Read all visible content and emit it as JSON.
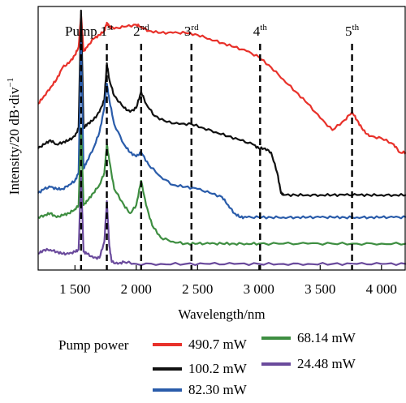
{
  "chart_data": {
    "type": "line",
    "xlabel": "Wavelength/nm",
    "ylabel": "Intensity/20 dB·div",
    "ylabel_superscript": "−1",
    "xlim": [
      1200,
      4200
    ],
    "x_ticks": [
      {
        "value": 1500,
        "label": "1 500"
      },
      {
        "value": 2000,
        "label": "2 000"
      },
      {
        "value": 2500,
        "label": "2 500"
      },
      {
        "value": 3000,
        "label": "3 000"
      },
      {
        "value": 3500,
        "label": "3 500"
      },
      {
        "value": 4000,
        "label": "4 000"
      }
    ],
    "grid": false,
    "markers": [
      {
        "label": "Pump",
        "sup": "",
        "x": 1550
      },
      {
        "label": "1",
        "sup": "st",
        "x": 1760
      },
      {
        "label": "2",
        "sup": "nd",
        "x": 2040
      },
      {
        "label": "3",
        "sup": "rd",
        "x": 2450
      },
      {
        "label": "4",
        "sup": "th",
        "x": 3010
      },
      {
        "label": "5",
        "sup": "th",
        "x": 3760
      }
    ],
    "legend": {
      "title": "Pump power",
      "placement": "bottom"
    },
    "series": [
      {
        "name": "490.7 mW",
        "color": "#e8312a",
        "x": [
          1200,
          1250,
          1300,
          1350,
          1400,
          1450,
          1500,
          1530,
          1550,
          1570,
          1600,
          1650,
          1700,
          1740,
          1760,
          1780,
          1820,
          1900,
          2000,
          2040,
          2100,
          2200,
          2300,
          2400,
          2500,
          2600,
          2700,
          2800,
          2900,
          3000,
          3100,
          3200,
          3300,
          3400,
          3500,
          3600,
          3700,
          3760,
          3800,
          3850,
          3900,
          4000,
          4100,
          4150,
          4200
        ],
        "y": [
          -48,
          -44,
          -40,
          -36,
          -30,
          -28,
          -24,
          -20,
          -4,
          -22,
          -20,
          -16,
          -14,
          -12,
          -8,
          -10,
          -11,
          -10,
          -9,
          -10,
          -12,
          -13,
          -13,
          -13,
          -14,
          -16,
          -18,
          -20,
          -22,
          -25,
          -30,
          -36,
          -42,
          -48,
          -55,
          -61,
          -56,
          -52,
          -56,
          -61,
          -64,
          -65,
          -68,
          -72,
          -72
        ]
      },
      {
        "name": "100.2 mW",
        "color": "#111111",
        "x": [
          1200,
          1250,
          1300,
          1350,
          1400,
          1450,
          1500,
          1530,
          1550,
          1570,
          1600,
          1650,
          1700,
          1740,
          1760,
          1780,
          1820,
          1900,
          1950,
          2000,
          2040,
          2080,
          2150,
          2250,
          2350,
          2450,
          2550,
          2650,
          2750,
          2850,
          2950,
          3000,
          3050,
          3100,
          3150,
          3180,
          3200,
          3300,
          3400,
          3500,
          3600,
          3700,
          3800,
          3900,
          4000,
          4100,
          4200
        ],
        "y": [
          -70,
          -68,
          -66,
          -68,
          -67,
          -66,
          -64,
          -60,
          -2,
          -60,
          -58,
          -56,
          -52,
          -46,
          -28,
          -36,
          -44,
          -50,
          -52,
          -50,
          -42,
          -48,
          -54,
          -57,
          -58,
          -58,
          -60,
          -62,
          -64,
          -66,
          -68,
          -70,
          -70,
          -72,
          -82,
          -92,
          -93,
          -93,
          -93,
          -93,
          -93,
          -93,
          -93,
          -93,
          -93,
          -93,
          -93
        ]
      },
      {
        "name": "82.30 mW",
        "color": "#2a5caa",
        "x": [
          1200,
          1250,
          1300,
          1350,
          1400,
          1450,
          1500,
          1530,
          1550,
          1570,
          1600,
          1650,
          1700,
          1740,
          1760,
          1780,
          1820,
          1900,
          1950,
          2000,
          2040,
          2100,
          2200,
          2300,
          2400,
          2500,
          2600,
          2700,
          2750,
          2800,
          2850,
          2900,
          3000,
          3100,
          3200,
          3300,
          3400,
          3500,
          3600,
          3700,
          3800,
          3900,
          4000,
          4100,
          4200
        ],
        "y": [
          -92,
          -90,
          -89,
          -90,
          -90,
          -88,
          -86,
          -82,
          -18,
          -80,
          -76,
          -70,
          -62,
          -50,
          -38,
          -46,
          -58,
          -68,
          -72,
          -74,
          -72,
          -78,
          -84,
          -88,
          -89,
          -90,
          -92,
          -94,
          -98,
          -102,
          -104,
          -104,
          -104,
          -104,
          -104,
          -104,
          -104,
          -104,
          -104,
          -104,
          -104,
          -104,
          -104,
          -104,
          -104
        ]
      },
      {
        "name": "68.14 mW",
        "color": "#3e8e41",
        "x": [
          1200,
          1250,
          1300,
          1350,
          1400,
          1450,
          1500,
          1530,
          1550,
          1570,
          1600,
          1650,
          1700,
          1740,
          1760,
          1780,
          1820,
          1900,
          1950,
          2000,
          2040,
          2080,
          2130,
          2200,
          2300,
          2400,
          2500,
          2600,
          2700,
          2800,
          2900,
          3000,
          3200,
          3400,
          3600,
          3800,
          4000,
          4200
        ],
        "y": [
          -104,
          -103,
          -102,
          -104,
          -103,
          -102,
          -100,
          -98,
          -60,
          -98,
          -96,
          -92,
          -88,
          -82,
          -68,
          -76,
          -90,
          -98,
          -102,
          -98,
          -86,
          -98,
          -108,
          -114,
          -116,
          -117,
          -117,
          -117,
          -117,
          -117,
          -117,
          -117,
          -117,
          -117,
          -117,
          -117,
          -117,
          -117
        ]
      },
      {
        "name": "24.48 mW",
        "color": "#6a4a9c",
        "x": [
          1200,
          1250,
          1300,
          1350,
          1400,
          1450,
          1500,
          1530,
          1550,
          1570,
          1600,
          1650,
          1700,
          1740,
          1760,
          1780,
          1800,
          1850,
          1900,
          2000,
          2200,
          2400,
          2600,
          2800,
          3000,
          3200,
          3400,
          3600,
          3800,
          4000,
          4200
        ],
        "y": [
          -122,
          -120,
          -120,
          -121,
          -122,
          -122,
          -121,
          -120,
          -84,
          -121,
          -122,
          -124,
          -124,
          -116,
          -96,
          -118,
          -126,
          -127,
          -126,
          -127,
          -127,
          -127,
          -127,
          -127,
          -127,
          -127,
          -127,
          -127,
          -127,
          -127,
          -127
        ]
      }
    ]
  }
}
